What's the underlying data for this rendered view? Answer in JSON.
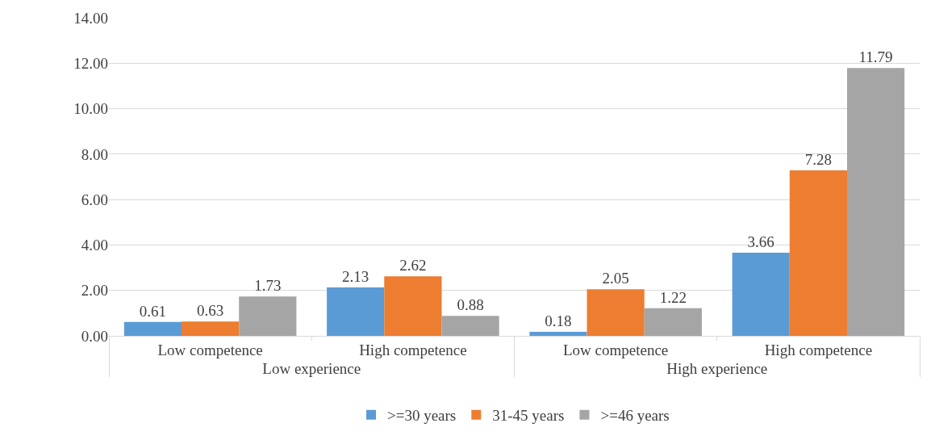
{
  "chart_data": {
    "type": "bar",
    "categories": [
      "Low competence",
      "High competence",
      "Low competence",
      "High competence"
    ],
    "annotations": [
      "Low experience",
      "High experience"
    ],
    "series": [
      {
        "name": ">=30 years",
        "color": "#5b9bd5",
        "values": [
          0.61,
          2.13,
          0.18,
          3.66
        ]
      },
      {
        "name": "31-45 years",
        "color": "#ed7d31",
        "values": [
          0.63,
          2.62,
          2.05,
          7.28
        ]
      },
      {
        "name": ">=46 years",
        "color": "#a5a5a5",
        "values": [
          1.73,
          0.88,
          1.22,
          11.79
        ]
      }
    ],
    "ylim": [
      0,
      14
    ],
    "yticks": [
      {
        "value": 0,
        "label": "0.00"
      },
      {
        "value": 2,
        "label": "2.00"
      },
      {
        "value": 4,
        "label": "4.00"
      },
      {
        "value": 6,
        "label": "6.00"
      },
      {
        "value": 8,
        "label": "8.00"
      },
      {
        "value": 10,
        "label": "10.00"
      },
      {
        "value": 12,
        "label": "12.00"
      },
      {
        "value": 14,
        "label": "14.00"
      }
    ],
    "grid": "y",
    "legend": "bottom",
    "data_labels": true
  }
}
